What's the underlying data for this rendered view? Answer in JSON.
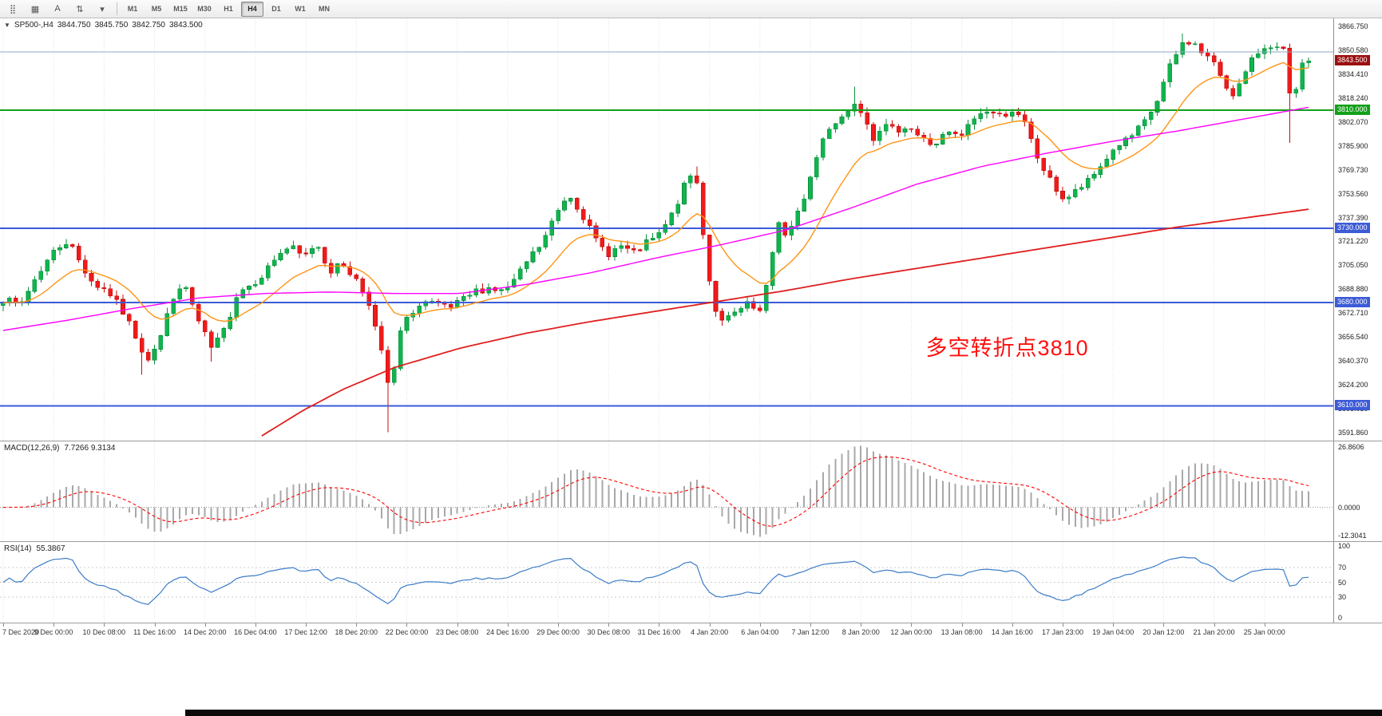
{
  "colors": {
    "up_fill": "#10b44e",
    "up_stroke": "#0a8f3c",
    "down_fill": "#ef1b1b",
    "down_stroke": "#c40e0e",
    "ma_fast": "#ff9415",
    "ma_mid": "#ff00ff",
    "ma_slow": "#e02020",
    "hline_green": "#12a119",
    "hline_blue": "#3c5bd7",
    "top_gray_line": "#8fa8c0",
    "price_badge_bg": "#9c0f0f",
    "macd_hist": "#a8a8a8",
    "macd_signal": "#ff0000",
    "rsi_line": "#3d7dc8",
    "grid": "#e2e2e2"
  },
  "toolbar": {
    "icons": [
      {
        "name": "drag-grip-icon",
        "glyph": "⣿"
      },
      {
        "name": "chart-mode-icon",
        "glyph": "▦"
      },
      {
        "name": "cursor-a-icon",
        "glyph": "A"
      },
      {
        "name": "scale-updown-icon",
        "glyph": "⇅"
      },
      {
        "name": "timeframe-dropdown-icon",
        "glyph": "▾"
      }
    ],
    "timeframes": [
      "M1",
      "M5",
      "M15",
      "M30",
      "H1",
      "H4",
      "D1",
      "W1",
      "MN"
    ],
    "active_timeframe": "H4"
  },
  "header": {
    "collapse_icon": "▼",
    "symbol": "SP500-,H4",
    "open": "3844.750",
    "high": "3845.750",
    "low": "3842.750",
    "close": "3843.500"
  },
  "annotation": {
    "text": "多空转折点3810",
    "color": "#ff1111"
  },
  "price_axis": {
    "labels": [
      "3866.750",
      "3850.580",
      "3834.410",
      "3818.240",
      "3802.070",
      "3785.900",
      "3769.730",
      "3753.560",
      "3737.390",
      "3721.220",
      "3705.050",
      "3688.880",
      "3672.710",
      "3656.540",
      "3640.370",
      "3624.200",
      "3608.030",
      "3591.860"
    ]
  },
  "current_price": {
    "label": "3843.500",
    "value": 3843.5
  },
  "hlines": [
    {
      "price": 3849.5,
      "color_key": "top_gray_line",
      "width": 1,
      "label": null
    },
    {
      "price": 3810,
      "color_key": "hline_green",
      "width": 2,
      "label": "3810.000"
    },
    {
      "price": 3730,
      "color_key": "hline_blue",
      "width": 2,
      "label": "3730.000"
    },
    {
      "price": 3680,
      "color_key": "hline_blue",
      "width": 2,
      "label": "3680.000"
    },
    {
      "price": 3610,
      "color_key": "hline_blue",
      "width": 2,
      "label": "3610.000"
    }
  ],
  "macd": {
    "title": "MACD(12,26,9)",
    "values": "7.7266 9.3134",
    "axis_top": "26.8606",
    "axis_zero": "0.0000",
    "axis_bottom": "-12.3041"
  },
  "rsi": {
    "title": "RSI(14)",
    "value": "55.3867",
    "levels": [
      100,
      70,
      50,
      30,
      0
    ],
    "dashed_levels": [
      70,
      50,
      30
    ]
  },
  "time_axis": {
    "labels": [
      "7 Dec 2020",
      "9 Dec 00:00",
      "10 Dec 08:00",
      "11 Dec 16:00",
      "14 Dec 20:00",
      "16 Dec 04:00",
      "17 Dec 12:00",
      "18 Dec 20:00",
      "22 Dec 00:00",
      "23 Dec 08:00",
      "24 Dec 16:00",
      "29 Dec 00:00",
      "30 Dec 08:00",
      "31 Dec 16:00",
      "4 Jan 20:00",
      "6 Jan 04:00",
      "7 Jan 12:00",
      "8 Jan 20:00",
      "12 Jan 00:00",
      "13 Jan 08:00",
      "14 Jan 16:00",
      "17 Jan 23:00",
      "19 Jan 04:00",
      "20 Jan 12:00",
      "21 Jan 20:00",
      "25 Jan 00:00"
    ]
  },
  "chart_data": {
    "type": "candlestick",
    "symbol": "SP500",
    "timeframe": "H4",
    "candle_count": 208,
    "ylim": [
      3591.86,
      3866.75
    ],
    "ohlc_last": {
      "open": 3844.75,
      "high": 3845.75,
      "low": 3842.75,
      "close": 3843.5
    },
    "horizontal_levels": [
      3849.5,
      3810,
      3730,
      3680,
      3610
    ],
    "macd_axis_range": [
      -12.3041,
      26.8606
    ],
    "macd_last": [
      7.7266,
      9.3134
    ],
    "rsi_last": 55.3867,
    "close_path_anchors": [
      [
        0,
        3682
      ],
      [
        0.013,
        3678
      ],
      [
        0.027,
        3700
      ],
      [
        0.04,
        3716
      ],
      [
        0.05,
        3722
      ],
      [
        0.06,
        3705
      ],
      [
        0.07,
        3692
      ],
      [
        0.08,
        3688
      ],
      [
        0.09,
        3676
      ],
      [
        0.1,
        3660
      ],
      [
        0.11,
        3641
      ],
      [
        0.12,
        3655
      ],
      [
        0.13,
        3684
      ],
      [
        0.14,
        3690
      ],
      [
        0.15,
        3666
      ],
      [
        0.16,
        3648
      ],
      [
        0.17,
        3662
      ],
      [
        0.18,
        3688
      ],
      [
        0.19,
        3692
      ],
      [
        0.2,
        3700
      ],
      [
        0.21,
        3712
      ],
      [
        0.22,
        3718
      ],
      [
        0.23,
        3710
      ],
      [
        0.24,
        3721
      ],
      [
        0.25,
        3701
      ],
      [
        0.26,
        3706
      ],
      [
        0.27,
        3696
      ],
      [
        0.28,
        3681
      ],
      [
        0.29,
        3645
      ],
      [
        0.297,
        3616
      ],
      [
        0.303,
        3658
      ],
      [
        0.313,
        3674
      ],
      [
        0.323,
        3680
      ],
      [
        0.333,
        3678
      ],
      [
        0.343,
        3676
      ],
      [
        0.353,
        3682
      ],
      [
        0.363,
        3688
      ],
      [
        0.373,
        3690
      ],
      [
        0.383,
        3687
      ],
      [
        0.393,
        3696
      ],
      [
        0.403,
        3710
      ],
      [
        0.413,
        3720
      ],
      [
        0.423,
        3739
      ],
      [
        0.433,
        3754
      ],
      [
        0.443,
        3741
      ],
      [
        0.453,
        3723
      ],
      [
        0.463,
        3713
      ],
      [
        0.473,
        3718
      ],
      [
        0.483,
        3713
      ],
      [
        0.493,
        3720
      ],
      [
        0.503,
        3726
      ],
      [
        0.513,
        3740
      ],
      [
        0.523,
        3761
      ],
      [
        0.53,
        3770
      ],
      [
        0.537,
        3722
      ],
      [
        0.543,
        3682
      ],
      [
        0.55,
        3666
      ],
      [
        0.56,
        3672
      ],
      [
        0.57,
        3678
      ],
      [
        0.58,
        3673
      ],
      [
        0.587,
        3698
      ],
      [
        0.593,
        3738
      ],
      [
        0.6,
        3723
      ],
      [
        0.607,
        3736
      ],
      [
        0.613,
        3750
      ],
      [
        0.62,
        3769
      ],
      [
        0.627,
        3789
      ],
      [
        0.633,
        3799
      ],
      [
        0.64,
        3804
      ],
      [
        0.647,
        3809
      ],
      [
        0.653,
        3817
      ],
      [
        0.66,
        3806
      ],
      [
        0.667,
        3791
      ],
      [
        0.673,
        3800
      ],
      [
        0.683,
        3796
      ],
      [
        0.693,
        3800
      ],
      [
        0.703,
        3791
      ],
      [
        0.713,
        3786
      ],
      [
        0.723,
        3795
      ],
      [
        0.733,
        3791
      ],
      [
        0.743,
        3804
      ],
      [
        0.753,
        3810
      ],
      [
        0.763,
        3806
      ],
      [
        0.773,
        3810
      ],
      [
        0.783,
        3800
      ],
      [
        0.793,
        3776
      ],
      [
        0.803,
        3761
      ],
      [
        0.813,
        3749
      ],
      [
        0.823,
        3756
      ],
      [
        0.833,
        3763
      ],
      [
        0.843,
        3775
      ],
      [
        0.853,
        3786
      ],
      [
        0.863,
        3791
      ],
      [
        0.873,
        3800
      ],
      [
        0.883,
        3814
      ],
      [
        0.893,
        3838
      ],
      [
        0.903,
        3855
      ],
      [
        0.91,
        3857
      ],
      [
        0.917,
        3850
      ],
      [
        0.923,
        3846
      ],
      [
        0.93,
        3838
      ],
      [
        0.937,
        3826
      ],
      [
        0.943,
        3821
      ],
      [
        0.95,
        3832
      ],
      [
        0.957,
        3844
      ],
      [
        0.963,
        3851
      ],
      [
        0.97,
        3855
      ],
      [
        0.977,
        3851
      ],
      [
        0.983,
        3849
      ],
      [
        0.987,
        3803
      ],
      [
        0.993,
        3838
      ],
      [
        1,
        3843.5
      ]
    ],
    "ma_fast": {
      "method": "ema",
      "period": 14
    },
    "ma_mid_anchors": [
      [
        0,
        3661
      ],
      [
        0.05,
        3668
      ],
      [
        0.1,
        3676
      ],
      [
        0.15,
        3683
      ],
      [
        0.2,
        3686
      ],
      [
        0.25,
        3687
      ],
      [
        0.3,
        3686
      ],
      [
        0.35,
        3686
      ],
      [
        0.4,
        3692
      ],
      [
        0.45,
        3700
      ],
      [
        0.5,
        3710
      ],
      [
        0.55,
        3719
      ],
      [
        0.6,
        3729
      ],
      [
        0.65,
        3744
      ],
      [
        0.7,
        3760
      ],
      [
        0.75,
        3772
      ],
      [
        0.8,
        3781
      ],
      [
        0.85,
        3789
      ],
      [
        0.9,
        3796
      ],
      [
        0.95,
        3804
      ],
      [
        1,
        3812
      ]
    ],
    "ma_slow_anchors": [
      [
        0.195,
        3588
      ],
      [
        0.23,
        3607
      ],
      [
        0.26,
        3621
      ],
      [
        0.3,
        3636
      ],
      [
        0.35,
        3649
      ],
      [
        0.4,
        3659
      ],
      [
        0.45,
        3667
      ],
      [
        0.5,
        3674
      ],
      [
        0.55,
        3681
      ],
      [
        0.6,
        3688
      ],
      [
        0.65,
        3696
      ],
      [
        0.7,
        3703
      ],
      [
        0.75,
        3710
      ],
      [
        0.8,
        3717
      ],
      [
        0.85,
        3724
      ],
      [
        0.9,
        3731
      ],
      [
        0.95,
        3737
      ],
      [
        1,
        3743
      ]
    ],
    "special_wicks": [
      {
        "f": 0.108,
        "low": 3631
      },
      {
        "f": 0.158,
        "low": 3640
      },
      {
        "f": 0.297,
        "low": 3592
      },
      {
        "f": 0.53,
        "high": 3772
      },
      {
        "f": 0.653,
        "high": 3826
      },
      {
        "f": 0.903,
        "high": 3862
      },
      {
        "f": 0.987,
        "low": 3788
      }
    ]
  }
}
